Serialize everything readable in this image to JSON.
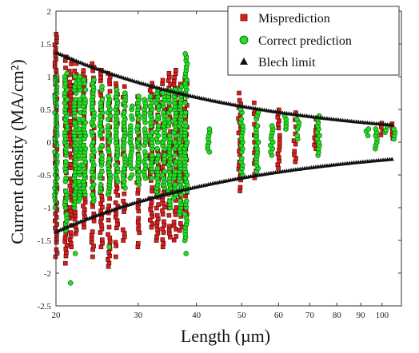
{
  "chart_data": {
    "type": "scatter",
    "xlabel": "Length (µm)",
    "ylabel": "Current density (MA/cm²)",
    "x_scale": "log",
    "xlim": [
      20,
      110
    ],
    "ylim": [
      -2.5,
      2
    ],
    "x_ticks": [
      20,
      30,
      40,
      50,
      60,
      70,
      80,
      90,
      100
    ],
    "x_tick_labels": [
      "20",
      "30",
      "40",
      "50",
      "60",
      "70",
      "80",
      "90",
      "100"
    ],
    "y_ticks": [
      -2.5,
      -2,
      -1.5,
      -1,
      -0.5,
      0,
      0.5,
      1,
      1.5,
      2
    ],
    "y_tick_labels": [
      "-2.5",
      "-2",
      "-1.5",
      "-1",
      "-0.5",
      "0",
      "0.5",
      "1",
      "1.5",
      "2"
    ],
    "grid": false,
    "legend_position": "top-right",
    "series": [
      {
        "name": "Misprediction",
        "marker": "square",
        "color": "#d42020",
        "edge_color": "#5a0000",
        "clusters": [
          {
            "x": 20,
            "y_min": -1.75,
            "y_max": 1.65
          },
          {
            "x": 21,
            "y_min": -1.85,
            "y_max": 1.3
          },
          {
            "x": 21.5,
            "y_min": -1.6,
            "y_max": 1.25
          },
          {
            "x": 22,
            "y_min": -1.4,
            "y_max": 1.2
          },
          {
            "x": 23,
            "y_min": -1.3,
            "y_max": 1.15
          },
          {
            "x": 24,
            "y_min": -1.75,
            "y_max": 1.2
          },
          {
            "x": 25,
            "y_min": -1.6,
            "y_max": 1.1
          },
          {
            "x": 26,
            "y_min": -1.9,
            "y_max": 1.05
          },
          {
            "x": 27,
            "y_min": -1.75,
            "y_max": 0.95
          },
          {
            "x": 28,
            "y_min": -1.5,
            "y_max": 0.85
          },
          {
            "x": 30,
            "y_min": -1.6,
            "y_max": 0.75
          },
          {
            "x": 32,
            "y_min": -1.3,
            "y_max": 0.9
          },
          {
            "x": 33,
            "y_min": -1.5,
            "y_max": 0.8
          },
          {
            "x": 34,
            "y_min": -1.6,
            "y_max": 1.0
          },
          {
            "x": 35,
            "y_min": -1.45,
            "y_max": 1.05
          },
          {
            "x": 36,
            "y_min": -1.55,
            "y_max": 1.1
          },
          {
            "x": 37,
            "y_min": -1.35,
            "y_max": 1.05
          },
          {
            "x": 38,
            "y_min": -1.1,
            "y_max": 0.95
          },
          {
            "x": 49.5,
            "y_min": -0.8,
            "y_max": 0.75
          },
          {
            "x": 53.5,
            "y_min": -0.6,
            "y_max": 0.6
          },
          {
            "x": 60,
            "y_min": -0.4,
            "y_max": 0.55
          },
          {
            "x": 65,
            "y_min": -0.3,
            "y_max": 0.45
          },
          {
            "x": 72,
            "y_min": -0.1,
            "y_max": 0.35
          },
          {
            "x": 100,
            "y_min": 0.05,
            "y_max": 0.35
          },
          {
            "x": 105,
            "y_min": 0.0,
            "y_max": 0.28
          }
        ]
      },
      {
        "name": "Correct prediction",
        "marker": "circle",
        "color": "#22dd22",
        "edge_color": "#0a5a0a",
        "clusters": [
          {
            "x": 20,
            "y_min": -1.0,
            "y_max": 1.0
          },
          {
            "x": 21,
            "y_min": -1.35,
            "y_max": 1.05
          },
          {
            "x": 22,
            "y_min": -1.1,
            "y_max": 1.0
          },
          {
            "x": 22.5,
            "y_min": -0.9,
            "y_max": 1.0
          },
          {
            "x": 23,
            "y_min": -0.8,
            "y_max": 0.95
          },
          {
            "x": 24,
            "y_min": -0.9,
            "y_max": 0.95
          },
          {
            "x": 25,
            "y_min": -0.75,
            "y_max": 0.85
          },
          {
            "x": 26,
            "y_min": -0.8,
            "y_max": 0.75
          },
          {
            "x": 27,
            "y_min": -0.6,
            "y_max": 0.8
          },
          {
            "x": 28,
            "y_min": -0.7,
            "y_max": 0.75
          },
          {
            "x": 29,
            "y_min": -0.55,
            "y_max": 0.6
          },
          {
            "x": 30,
            "y_min": -0.65,
            "y_max": 0.7
          },
          {
            "x": 31,
            "y_min": -0.6,
            "y_max": 0.65
          },
          {
            "x": 32,
            "y_min": -0.55,
            "y_max": 0.7
          },
          {
            "x": 33,
            "y_min": -0.8,
            "y_max": 0.8
          },
          {
            "x": 34,
            "y_min": -0.7,
            "y_max": 0.75
          },
          {
            "x": 35,
            "y_min": -1.0,
            "y_max": 0.85
          },
          {
            "x": 36,
            "y_min": -0.9,
            "y_max": 0.8
          },
          {
            "x": 37,
            "y_min": -1.1,
            "y_max": 0.85
          },
          {
            "x": 38,
            "y_min": -1.5,
            "y_max": 1.35
          },
          {
            "x": 42.5,
            "y_min": -0.15,
            "y_max": 0.2
          },
          {
            "x": 50,
            "y_min": -0.5,
            "y_max": 0.5
          },
          {
            "x": 54,
            "y_min": -0.45,
            "y_max": 0.45
          },
          {
            "x": 58,
            "y_min": -0.2,
            "y_max": 0.25
          },
          {
            "x": 62,
            "y_min": 0.2,
            "y_max": 0.4
          },
          {
            "x": 66,
            "y_min": 0.05,
            "y_max": 0.35
          },
          {
            "x": 73,
            "y_min": -0.2,
            "y_max": 0.4
          },
          {
            "x": 93,
            "y_min": 0.1,
            "y_max": 0.2
          },
          {
            "x": 97,
            "y_min": -0.1,
            "y_max": 0.2
          },
          {
            "x": 102,
            "y_min": 0.15,
            "y_max": 0.25
          },
          {
            "x": 106,
            "y_min": 0.05,
            "y_max": 0.2
          }
        ],
        "outliers": [
          {
            "x": 21.5,
            "y": -2.15
          },
          {
            "x": 22,
            "y": -1.7
          },
          {
            "x": 26,
            "y": -1.6
          },
          {
            "x": 38,
            "y": -1.7
          }
        ]
      },
      {
        "name": "Blech limit",
        "marker": "triangle",
        "color": "#111111",
        "curve": "y = ±c / L",
        "c": 27.4,
        "x_range": [
          20,
          105
        ]
      }
    ]
  }
}
